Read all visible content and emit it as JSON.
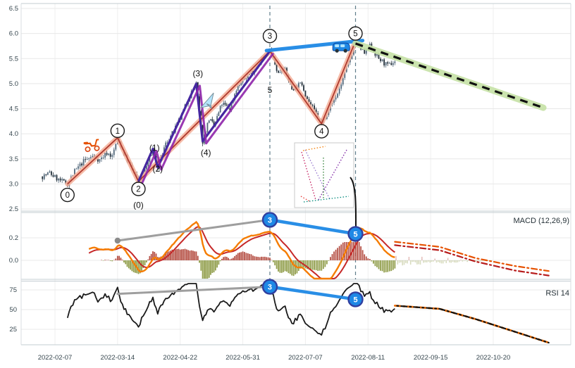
{
  "chart_data": {
    "type": "candlestick",
    "x_axis": {
      "ticks": [
        "2022-02-07",
        "2022-03-14",
        "2022-04-22",
        "2022-05-31",
        "2022-07-07",
        "2022-08-11",
        "2022-09-15",
        "2022-10-20"
      ]
    },
    "price_panel": {
      "ylim": [
        2.5,
        6.5
      ],
      "yticks": [
        "6.5",
        "6.0",
        "5.5",
        "5.0",
        "4.5",
        "4.0",
        "3.5",
        "3.0",
        "2.5"
      ],
      "ytick_values": [
        6.5,
        6.0,
        5.5,
        5.0,
        4.5,
        4.0,
        3.5,
        3.0,
        2.5
      ],
      "candles_start": "2022-01-31",
      "candles_end": "2022-08-26",
      "price_path": [
        {
          "date": "2022-01-31",
          "price": 3.15
        },
        {
          "date": "2022-02-04",
          "price": 3.22
        },
        {
          "date": "2022-02-09",
          "price": 3.08
        },
        {
          "date": "2022-02-14",
          "price": 3.0
        },
        {
          "date": "2022-02-18",
          "price": 3.25
        },
        {
          "date": "2022-02-23",
          "price": 3.45
        },
        {
          "date": "2022-02-28",
          "price": 3.55
        },
        {
          "date": "2022-03-04",
          "price": 3.48
        },
        {
          "date": "2022-03-08",
          "price": 3.62
        },
        {
          "date": "2022-03-11",
          "price": 3.55
        },
        {
          "date": "2022-03-14",
          "price": 3.92
        },
        {
          "date": "2022-03-18",
          "price": 3.6
        },
        {
          "date": "2022-03-22",
          "price": 3.35
        },
        {
          "date": "2022-03-27",
          "price": 3.05
        },
        {
          "date": "2022-04-01",
          "price": 3.35
        },
        {
          "date": "2022-04-05",
          "price": 3.7
        },
        {
          "date": "2022-04-08",
          "price": 3.33
        },
        {
          "date": "2022-04-13",
          "price": 3.8
        },
        {
          "date": "2022-04-18",
          "price": 4.05
        },
        {
          "date": "2022-04-22",
          "price": 4.3
        },
        {
          "date": "2022-04-27",
          "price": 4.7
        },
        {
          "date": "2022-05-02",
          "price": 5.0
        },
        {
          "date": "2022-05-06",
          "price": 3.85
        },
        {
          "date": "2022-05-10",
          "price": 4.3
        },
        {
          "date": "2022-05-13",
          "price": 4.15
        },
        {
          "date": "2022-05-18",
          "price": 4.6
        },
        {
          "date": "2022-05-23",
          "price": 4.5
        },
        {
          "date": "2022-05-27",
          "price": 4.9
        },
        {
          "date": "2022-06-01",
          "price": 5.1
        },
        {
          "date": "2022-06-07",
          "price": 5.3
        },
        {
          "date": "2022-06-10",
          "price": 5.45
        },
        {
          "date": "2022-06-16",
          "price": 5.65
        },
        {
          "date": "2022-06-21",
          "price": 5.2
        },
        {
          "date": "2022-06-24",
          "price": 5.35
        },
        {
          "date": "2022-06-29",
          "price": 4.9
        },
        {
          "date": "2022-07-05",
          "price": 5.0
        },
        {
          "date": "2022-07-08",
          "price": 4.7
        },
        {
          "date": "2022-07-12",
          "price": 4.45
        },
        {
          "date": "2022-07-16",
          "price": 4.2
        },
        {
          "date": "2022-07-20",
          "price": 4.5
        },
        {
          "date": "2022-07-25",
          "price": 4.8
        },
        {
          "date": "2022-07-28",
          "price": 5.1
        },
        {
          "date": "2022-08-01",
          "price": 5.5
        },
        {
          "date": "2022-08-04",
          "price": 5.85
        },
        {
          "date": "2022-08-09",
          "price": 5.6
        },
        {
          "date": "2022-08-12",
          "price": 5.75
        },
        {
          "date": "2022-08-17",
          "price": 5.5
        },
        {
          "date": "2022-08-22",
          "price": 5.35
        },
        {
          "date": "2022-08-26",
          "price": 5.45
        }
      ],
      "wave_path": [
        {
          "date": "2022-02-14",
          "price": 3.0
        },
        {
          "date": "2022-03-14",
          "price": 3.92
        },
        {
          "date": "2022-03-27",
          "price": 3.05
        },
        {
          "date": "2022-06-16",
          "price": 5.65
        },
        {
          "date": "2022-07-16",
          "price": 4.2
        },
        {
          "date": "2022-08-04",
          "price": 5.85
        }
      ],
      "subwave_path": [
        {
          "date": "2022-03-27",
          "price": 3.05
        },
        {
          "date": "2022-04-05",
          "price": 3.7
        },
        {
          "date": "2022-04-08",
          "price": 3.33
        },
        {
          "date": "2022-05-02",
          "price": 5.0
        },
        {
          "date": "2022-05-06",
          "price": 3.85
        },
        {
          "date": "2022-06-16",
          "price": 5.65
        }
      ],
      "wave_markers": [
        {
          "label": "0",
          "date": "2022-02-14",
          "price": 2.78
        },
        {
          "label": "1",
          "date": "2022-03-14",
          "price": 4.06
        },
        {
          "label": "2",
          "date": "2022-03-27",
          "price": 2.9
        },
        {
          "label": "3",
          "date": "2022-06-16",
          "price": 5.95
        },
        {
          "label": "4",
          "date": "2022-07-16",
          "price": 4.05
        },
        {
          "label": "5",
          "date": "2022-08-04",
          "price": 6.0
        }
      ],
      "subwave_labels": [
        {
          "label": "(0)",
          "date": "2022-03-27",
          "price": 2.58
        },
        {
          "label": "(1)",
          "date": "2022-04-06",
          "price": 3.72
        },
        {
          "label": "(2)",
          "date": "2022-04-08",
          "price": 3.3
        },
        {
          "label": "(3)",
          "date": "2022-05-03",
          "price": 5.2
        },
        {
          "label": "(4)",
          "date": "2022-05-08",
          "price": 3.62
        },
        {
          "label": "5",
          "date": "2022-06-16",
          "price": 4.87
        }
      ],
      "trendline_3_5": {
        "from": {
          "date": "2022-06-14",
          "price": 5.66
        },
        "to": {
          "date": "2022-08-08",
          "price": 5.86
        }
      },
      "forecast_line": {
        "from": {
          "date": "2022-08-04",
          "price": 5.8
        },
        "to": {
          "date": "2022-11-17",
          "price": 4.52
        }
      },
      "divider_dates": [
        "2022-06-16",
        "2022-08-04"
      ],
      "icons": [
        {
          "name": "scooter-icon",
          "date": "2022-02-27",
          "price": 3.78
        },
        {
          "name": "airplane-icon",
          "date": "2022-05-08",
          "price": 4.56
        },
        {
          "name": "van-icon",
          "date": "2022-07-27",
          "price": 5.74
        }
      ]
    },
    "macd_panel": {
      "label": "MACD (12,26,9)",
      "params": [
        12,
        26,
        9
      ],
      "yticks": [
        "0.2",
        "0.0"
      ],
      "ytick_values": [
        0.2,
        0.0
      ],
      "markers": [
        {
          "label": "3",
          "date": "2022-06-16",
          "value": 0.36
        },
        {
          "label": "5",
          "date": "2022-08-04",
          "value": 0.235
        }
      ],
      "gray_trendline": {
        "from": {
          "date": "2022-03-14",
          "value": 0.175
        },
        "to": {
          "date": "2022-06-16",
          "value": 0.36
        }
      },
      "blue_trendline": {
        "from": {
          "date": "2022-06-16",
          "value": 0.36
        },
        "to": {
          "date": "2022-08-04",
          "value": 0.235
        }
      },
      "projections": [
        {
          "color": "#e65100",
          "points": [
            {
              "date": "2022-08-26",
              "value": 0.165
            },
            {
              "date": "2022-09-20",
              "value": 0.12
            },
            {
              "date": "2022-10-10",
              "value": 0.02
            },
            {
              "date": "2022-11-01",
              "value": -0.05
            },
            {
              "date": "2022-11-20",
              "value": -0.095
            }
          ]
        },
        {
          "color": "#b71c1c",
          "points": [
            {
              "date": "2022-08-26",
              "value": 0.135
            },
            {
              "date": "2022-09-20",
              "value": 0.09
            },
            {
              "date": "2022-10-10",
              "value": -0.01
            },
            {
              "date": "2022-11-01",
              "value": -0.09
            },
            {
              "date": "2022-11-20",
              "value": -0.135
            }
          ]
        }
      ]
    },
    "rsi_panel": {
      "label": "RSI 14",
      "period": 14,
      "yticks": [
        "75",
        "50",
        "25"
      ],
      "ytick_values": [
        75,
        50,
        25
      ],
      "markers": [
        {
          "label": "3",
          "date": "2022-06-16",
          "value": 79
        },
        {
          "label": "5",
          "date": "2022-08-04",
          "value": 63
        }
      ],
      "gray_trendline": {
        "from": {
          "date": "2022-03-14",
          "value": 70
        },
        "to": {
          "date": "2022-06-16",
          "value": 79
        }
      },
      "blue_trendline": {
        "from": {
          "date": "2022-06-16",
          "value": 79
        },
        "to": {
          "date": "2022-08-04",
          "value": 63
        }
      },
      "projections": [
        {
          "color": "#ef6c00",
          "points": [
            {
              "date": "2022-08-26",
              "value": 55
            },
            {
              "date": "2022-09-20",
              "value": 51
            },
            {
              "date": "2022-10-10",
              "value": 38
            },
            {
              "date": "2022-11-01",
              "value": 22
            },
            {
              "date": "2022-11-20",
              "value": 8
            }
          ]
        },
        {
          "color": "#111111",
          "points": [
            {
              "date": "2022-08-26",
              "value": 55
            },
            {
              "date": "2022-09-20",
              "value": 51
            },
            {
              "date": "2022-10-10",
              "value": 38
            },
            {
              "date": "2022-11-01",
              "value": 22
            },
            {
              "date": "2022-11-20",
              "value": 8
            }
          ]
        }
      ]
    },
    "colors": {
      "accent_blue": "#1e88e5",
      "marker_ring": "#303f9f",
      "wave_path_glow": "#f5b09a",
      "wave_path_core": "#b03a2e",
      "subwave_purple": "#4527a0",
      "subwave_purple2": "#8e24aa",
      "forecast_glow": "#c5e1a5",
      "forecast_dash": "#111111",
      "macd_line": "#f57c00",
      "macd_signal": "#c62828",
      "hist_pos": "#a93226",
      "hist_neg": "#7d8c2a",
      "rsi_line": "#1a1a1a",
      "gray_trend": "#9e9e9e",
      "divider": "#607d8b",
      "candle_up": "#51677a",
      "candle_down": "#222f3a",
      "grid": "#e8e8e8",
      "axis_text": "#37474f"
    }
  }
}
